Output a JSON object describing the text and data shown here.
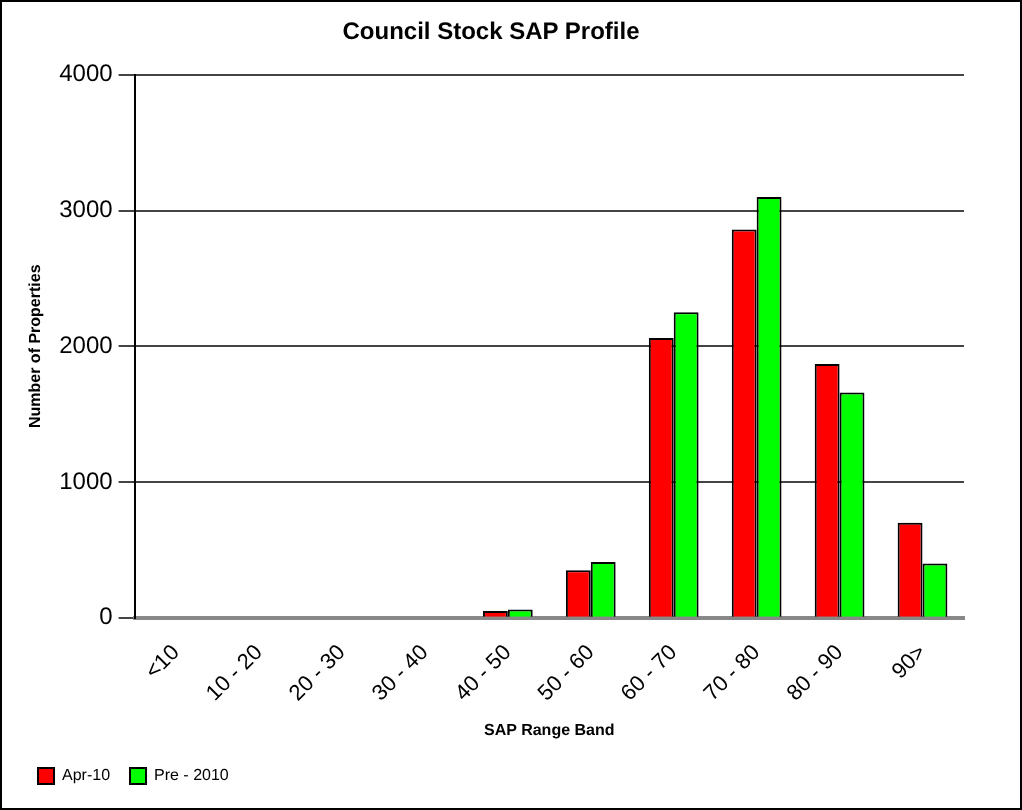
{
  "chart_data": {
    "type": "bar",
    "title": "Council Stock SAP Profile",
    "xlabel": "SAP Range Band",
    "ylabel": "Number of Properties",
    "categories": [
      "<10",
      "10 - 20",
      "20 - 30",
      "30 - 40",
      "40 - 50",
      "50 - 60",
      "60 - 70",
      "70 - 80",
      "80 - 90",
      "90>"
    ],
    "series": [
      {
        "name": "Apr-10",
        "color": "#ff0000",
        "values": [
          0,
          0,
          0,
          0,
          50,
          350,
          2060,
          2860,
          1870,
          700
        ]
      },
      {
        "name": "Pre - 2010",
        "color": "#00ff00",
        "values": [
          0,
          0,
          0,
          0,
          60,
          410,
          2250,
          3100,
          1660,
          400
        ]
      }
    ],
    "ylim": [
      0,
      4000
    ],
    "yticks": [
      0,
      1000,
      2000,
      3000,
      4000
    ],
    "grid": "y",
    "legend": "bottom left"
  }
}
